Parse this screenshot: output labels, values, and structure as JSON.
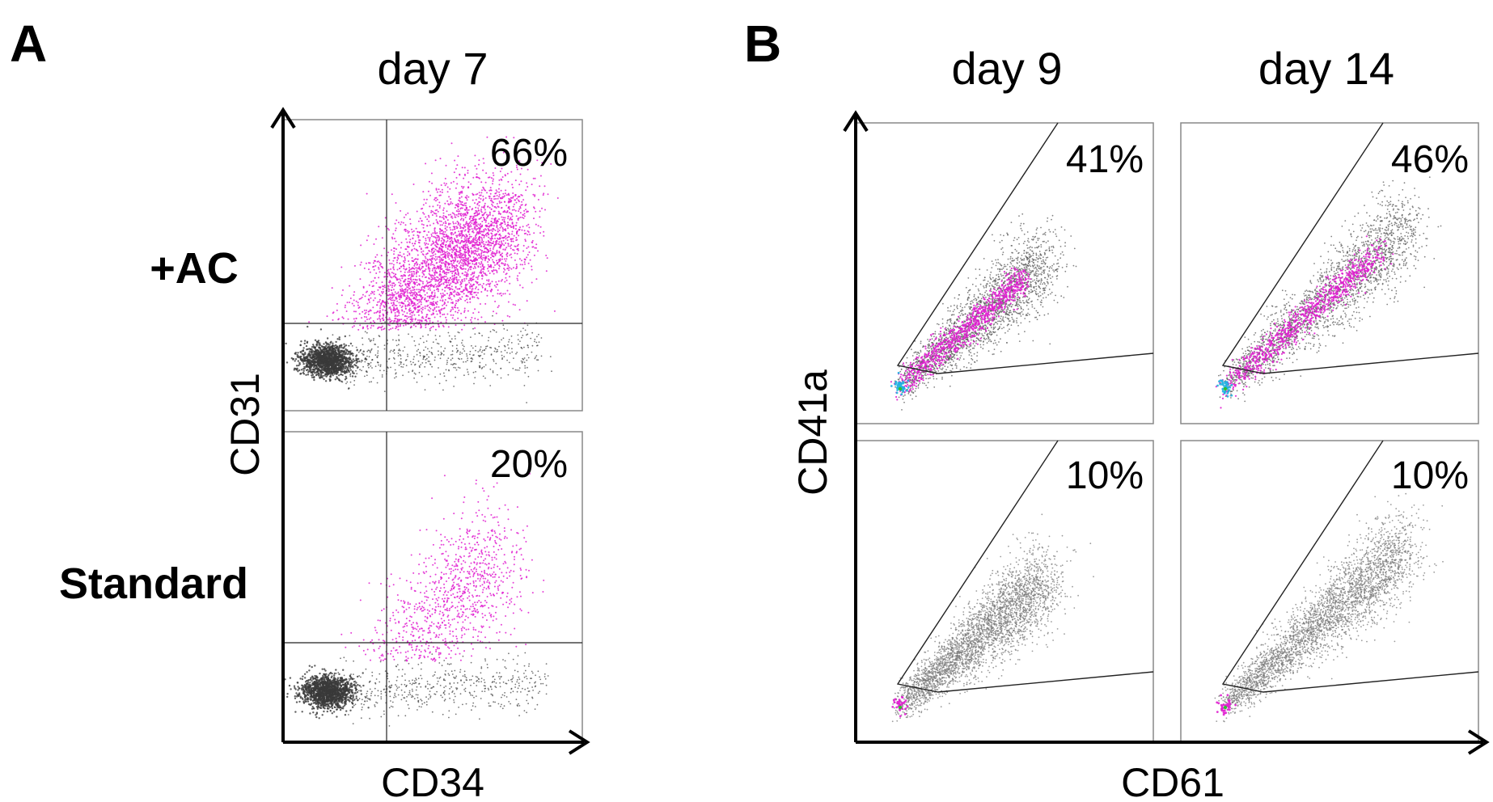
{
  "chart_data": [
    {
      "panel": "A",
      "type": "scatter",
      "title": "day 7",
      "xlabel": "CD34",
      "ylabel": "CD31",
      "plots": [
        {
          "row_label": "+AC",
          "percent_label": "66%",
          "percent": 66
        },
        {
          "row_label": "Standard",
          "percent_label": "20%",
          "percent": 20
        }
      ]
    },
    {
      "panel": "B",
      "type": "scatter",
      "xlabel": "CD61",
      "ylabel": "CD41a",
      "columns": [
        "day 9",
        "day 14"
      ],
      "plots": [
        {
          "column": "day 9",
          "row": 1,
          "percent_label": "41%",
          "percent": 41
        },
        {
          "column": "day 14",
          "row": 1,
          "percent_label": "46%",
          "percent": 46
        },
        {
          "column": "day 9",
          "row": 2,
          "percent_label": "10%",
          "percent": 10
        },
        {
          "column": "day 14",
          "row": 2,
          "percent_label": "10%",
          "percent": 10
        }
      ]
    }
  ],
  "colors": {
    "positive_events": "#e020d0",
    "negative_events": "#3a3a3a",
    "gray_events": "#7a7a7a",
    "dense_core": "#20b0e0"
  }
}
